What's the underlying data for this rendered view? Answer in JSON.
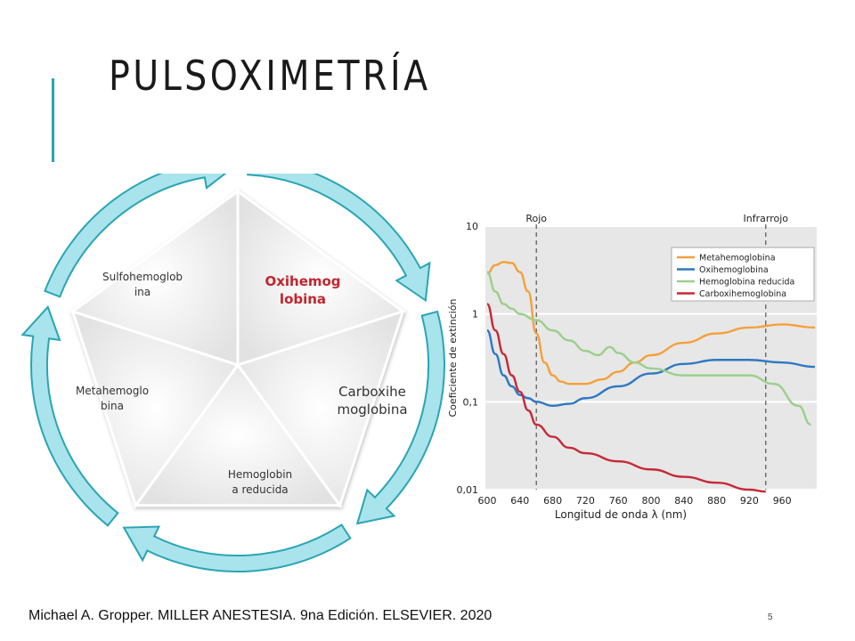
{
  "slide": {
    "title": "PULSOXIMETRÍA",
    "footer": "Michael A. Gropper. MILLER ANESTESIA. 9na Edición. ELSEVIER. 2020",
    "page_number": "5"
  },
  "cycle": {
    "segments": [
      {
        "line1": "Oxihemog",
        "line2": "lobina",
        "highlight": true
      },
      {
        "line1": "Carboxihe",
        "line2": "moglobina",
        "highlight": false
      },
      {
        "line1": "Hemoglobin",
        "line2": "a reducida",
        "highlight": false
      },
      {
        "line1": "Metahemoglo",
        "line2": "bina",
        "highlight": false
      },
      {
        "line1": "Sulfohemoglob",
        "line2": "ina",
        "highlight": false
      }
    ],
    "colors": {
      "highlight": "#c0262d",
      "arrow_fill": "#a9e3ec",
      "arrow_stroke": "#2aa5b3"
    }
  },
  "chart_data": {
    "type": "line",
    "xlabel": "Longitud de onda λ (nm)",
    "ylabel": "Coeficiente de extinción",
    "y_scale": "log",
    "xlim": [
      600,
      1000
    ],
    "ylim": [
      0.01,
      10
    ],
    "x_ticks": [
      "600",
      "640",
      "680",
      "720",
      "760",
      "800",
      "840",
      "880",
      "920",
      "960"
    ],
    "y_ticks": [
      "0,01",
      "0,1",
      "1",
      "10"
    ],
    "annotations": [
      {
        "label": "Rojo",
        "x": 660
      },
      {
        "label": "Infrarrojo",
        "x": 940
      }
    ],
    "legend_position": "top-right",
    "series": [
      {
        "name": "Metahemoglobina",
        "color": "#f5a03a",
        "x": [
          600,
          610,
          620,
          630,
          640,
          650,
          660,
          670,
          680,
          690,
          700,
          720,
          740,
          760,
          780,
          800,
          840,
          880,
          920,
          960,
          1000
        ],
        "y": [
          2.9,
          3.6,
          3.9,
          3.8,
          3.0,
          1.8,
          0.6,
          0.28,
          0.2,
          0.17,
          0.16,
          0.16,
          0.18,
          0.22,
          0.28,
          0.34,
          0.47,
          0.6,
          0.7,
          0.76,
          0.7
        ]
      },
      {
        "name": "Oxihemoglobina",
        "color": "#2e78c2",
        "x": [
          600,
          610,
          620,
          630,
          640,
          650,
          660,
          680,
          700,
          720,
          760,
          800,
          840,
          880,
          920,
          960,
          1000
        ],
        "y": [
          0.65,
          0.35,
          0.2,
          0.15,
          0.12,
          0.11,
          0.1,
          0.09,
          0.095,
          0.11,
          0.15,
          0.21,
          0.27,
          0.3,
          0.3,
          0.28,
          0.25
        ]
      },
      {
        "name": "Hemoglobina reducida",
        "color": "#9ccf8b",
        "x": [
          600,
          610,
          620,
          630,
          640,
          660,
          680,
          700,
          720,
          735,
          750,
          760,
          780,
          800,
          840,
          880,
          920,
          950,
          980,
          995
        ],
        "y": [
          3.0,
          1.8,
          1.3,
          1.15,
          1.0,
          0.85,
          0.65,
          0.5,
          0.38,
          0.34,
          0.42,
          0.36,
          0.28,
          0.24,
          0.2,
          0.2,
          0.2,
          0.16,
          0.09,
          0.055
        ]
      },
      {
        "name": "Carboxihemoglobina",
        "color": "#c62937",
        "x": [
          600,
          610,
          620,
          630,
          640,
          650,
          660,
          680,
          700,
          720,
          760,
          800,
          840,
          880,
          920,
          940
        ],
        "y": [
          1.3,
          0.65,
          0.35,
          0.2,
          0.13,
          0.08,
          0.055,
          0.04,
          0.03,
          0.026,
          0.021,
          0.017,
          0.014,
          0.012,
          0.01,
          0.0095
        ]
      }
    ]
  }
}
